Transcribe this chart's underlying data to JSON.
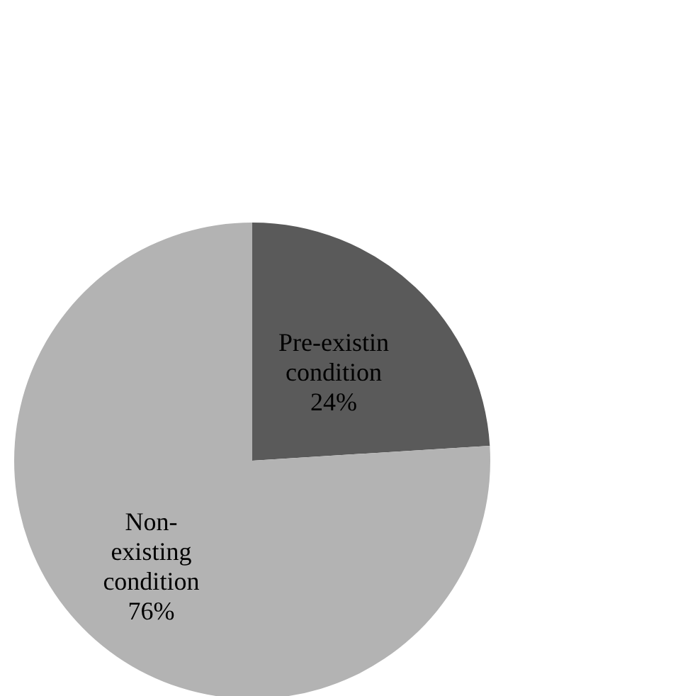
{
  "chart_data": {
    "type": "pie",
    "categories": [
      "Pre-existin condition",
      "Non-existing condition"
    ],
    "values": [
      24,
      76
    ],
    "colors": [
      "#5a5a5a",
      "#b3b3b3"
    ],
    "value_labels": [
      "24%",
      "76%"
    ],
    "legend": false
  }
}
